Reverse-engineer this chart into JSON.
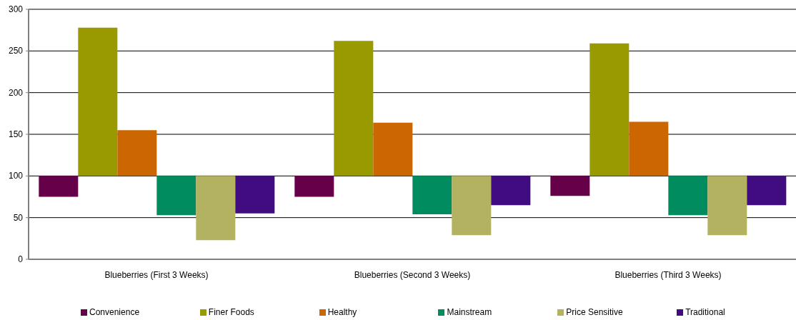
{
  "chart_data": {
    "type": "bar",
    "categories": [
      "Blueberries (First 3 Weeks)",
      "Blueberries (Second 3 Weeks)",
      "Blueberries (Third 3 Weeks)"
    ],
    "series": [
      {
        "name": "Convenience",
        "color": "#660049",
        "base": [
          100,
          100,
          100
        ],
        "values": [
          -25,
          -25,
          -24
        ]
      },
      {
        "name": "Finer Foods",
        "color": "#999900",
        "base": [
          100,
          100,
          100
        ],
        "values": [
          178,
          162,
          159
        ]
      },
      {
        "name": "Healthy",
        "color": "#cc6600",
        "base": [
          100,
          100,
          100
        ],
        "values": [
          55,
          64,
          65
        ]
      },
      {
        "name": "Mainstream",
        "color": "#008c5e",
        "base": [
          100,
          100,
          100
        ],
        "values": [
          -47,
          -46,
          -47
        ]
      },
      {
        "name": "Price Sensitive",
        "color": "#b2b260",
        "base": [
          100,
          100,
          100
        ],
        "values": [
          -77,
          -71,
          -71
        ]
      },
      {
        "name": "Traditional",
        "color": "#400c80",
        "base": [
          100,
          100,
          100
        ],
        "values": [
          -45,
          -35,
          -35
        ]
      }
    ],
    "ylim": [
      0,
      300
    ],
    "yticks": [
      0,
      50,
      100,
      150,
      200,
      250,
      300
    ],
    "grid": "y",
    "legend": "bottom"
  }
}
